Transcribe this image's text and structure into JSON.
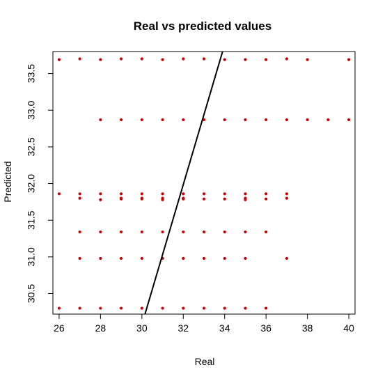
{
  "chart_data": {
    "type": "scatter",
    "title": "Real vs predicted values",
    "xlabel": "Real",
    "ylabel": "Predicted",
    "xlim": [
      25.7,
      40.3
    ],
    "ylim": [
      30.22,
      33.8
    ],
    "xticks": [
      26,
      28,
      30,
      32,
      34,
      36,
      38,
      40
    ],
    "yticks": [
      30.5,
      31.0,
      31.5,
      32.0,
      32.5,
      33.0,
      33.5
    ],
    "ytick_labels": [
      "30.5",
      "31.0",
      "31.5",
      "32.0",
      "32.5",
      "33.0",
      "33.5"
    ],
    "grid": false,
    "point_color": "#cc0000",
    "line_color": "#000000",
    "reference_line": {
      "x": [
        30.15,
        33.9
      ],
      "y": [
        30.22,
        33.8
      ]
    },
    "points": [
      {
        "x": 26,
        "y": 33.69
      },
      {
        "x": 27,
        "y": 33.7
      },
      {
        "x": 28,
        "y": 33.69
      },
      {
        "x": 29,
        "y": 33.7
      },
      {
        "x": 30,
        "y": 33.7
      },
      {
        "x": 31,
        "y": 33.69
      },
      {
        "x": 32,
        "y": 33.7
      },
      {
        "x": 33,
        "y": 33.7
      },
      {
        "x": 34,
        "y": 33.69
      },
      {
        "x": 35,
        "y": 33.69
      },
      {
        "x": 36,
        "y": 33.69
      },
      {
        "x": 37,
        "y": 33.7
      },
      {
        "x": 38,
        "y": 33.69
      },
      {
        "x": 40,
        "y": 33.69
      },
      {
        "x": 28,
        "y": 32.87
      },
      {
        "x": 29,
        "y": 32.87
      },
      {
        "x": 30,
        "y": 32.87
      },
      {
        "x": 31,
        "y": 32.87
      },
      {
        "x": 32,
        "y": 32.87
      },
      {
        "x": 33,
        "y": 32.87
      },
      {
        "x": 34,
        "y": 32.87
      },
      {
        "x": 35,
        "y": 32.87
      },
      {
        "x": 36,
        "y": 32.87
      },
      {
        "x": 37,
        "y": 32.87
      },
      {
        "x": 38,
        "y": 32.87
      },
      {
        "x": 39,
        "y": 32.87
      },
      {
        "x": 40,
        "y": 32.87
      },
      {
        "x": 26,
        "y": 31.86
      },
      {
        "x": 27,
        "y": 31.86
      },
      {
        "x": 28,
        "y": 31.86
      },
      {
        "x": 29,
        "y": 31.86
      },
      {
        "x": 30,
        "y": 31.86
      },
      {
        "x": 31,
        "y": 31.86
      },
      {
        "x": 32,
        "y": 31.86
      },
      {
        "x": 33,
        "y": 31.86
      },
      {
        "x": 34,
        "y": 31.86
      },
      {
        "x": 35,
        "y": 31.86
      },
      {
        "x": 36,
        "y": 31.86
      },
      {
        "x": 37,
        "y": 31.86
      },
      {
        "x": 27,
        "y": 31.8
      },
      {
        "x": 28,
        "y": 31.78
      },
      {
        "x": 29,
        "y": 31.79
      },
      {
        "x": 29,
        "y": 31.8
      },
      {
        "x": 30,
        "y": 31.79
      },
      {
        "x": 30,
        "y": 31.8
      },
      {
        "x": 31,
        "y": 31.78
      },
      {
        "x": 31,
        "y": 31.8
      },
      {
        "x": 32,
        "y": 31.79
      },
      {
        "x": 32,
        "y": 31.8
      },
      {
        "x": 33,
        "y": 31.79
      },
      {
        "x": 34,
        "y": 31.79
      },
      {
        "x": 35,
        "y": 31.78
      },
      {
        "x": 35,
        "y": 31.8
      },
      {
        "x": 36,
        "y": 31.79
      },
      {
        "x": 37,
        "y": 31.8
      },
      {
        "x": 27,
        "y": 31.34
      },
      {
        "x": 28,
        "y": 31.34
      },
      {
        "x": 29,
        "y": 31.34
      },
      {
        "x": 30,
        "y": 31.34
      },
      {
        "x": 31,
        "y": 31.34
      },
      {
        "x": 32,
        "y": 31.34
      },
      {
        "x": 33,
        "y": 31.34
      },
      {
        "x": 34,
        "y": 31.34
      },
      {
        "x": 35,
        "y": 31.34
      },
      {
        "x": 36,
        "y": 31.34
      },
      {
        "x": 27,
        "y": 30.98
      },
      {
        "x": 28,
        "y": 30.98
      },
      {
        "x": 29,
        "y": 30.98
      },
      {
        "x": 30,
        "y": 30.98
      },
      {
        "x": 31,
        "y": 30.98
      },
      {
        "x": 32,
        "y": 30.98
      },
      {
        "x": 33,
        "y": 30.98
      },
      {
        "x": 34,
        "y": 30.98
      },
      {
        "x": 35,
        "y": 30.98
      },
      {
        "x": 37,
        "y": 30.98
      },
      {
        "x": 26,
        "y": 30.3
      },
      {
        "x": 27,
        "y": 30.3
      },
      {
        "x": 28,
        "y": 30.3
      },
      {
        "x": 29,
        "y": 30.3
      },
      {
        "x": 30,
        "y": 30.3
      },
      {
        "x": 31,
        "y": 30.3
      },
      {
        "x": 32,
        "y": 30.3
      },
      {
        "x": 33,
        "y": 30.3
      },
      {
        "x": 34,
        "y": 30.3
      },
      {
        "x": 35,
        "y": 30.3
      },
      {
        "x": 36,
        "y": 30.3
      }
    ]
  }
}
